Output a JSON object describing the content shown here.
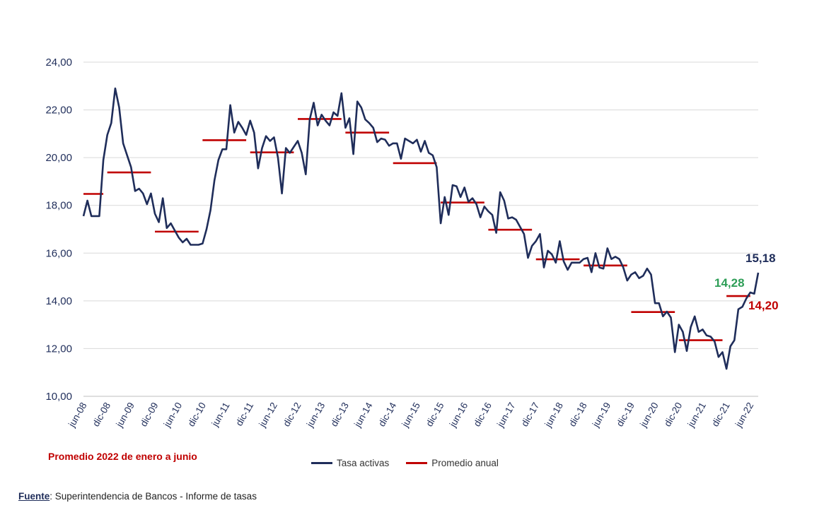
{
  "colors": {
    "series": "#1f2d5a",
    "average": "#c00000",
    "green": "#2e9e57",
    "grid": "#d9d9d9"
  },
  "chart_data": {
    "type": "line",
    "ylim": [
      10,
      24
    ],
    "yticks": [
      "10,00",
      "12,00",
      "14,00",
      "16,00",
      "18,00",
      "20,00",
      "22,00",
      "24,00"
    ],
    "ytick_values": [
      10,
      12,
      14,
      16,
      18,
      20,
      22,
      24
    ],
    "xticks": [
      "jun-08",
      "dic-08",
      "jun-09",
      "dic-09",
      "jun-10",
      "dic-10",
      "jun-11",
      "dic-11",
      "jun-12",
      "dic-12",
      "jun-13",
      "dic-13",
      "jun-14",
      "dic-14",
      "jun-15",
      "dic-15",
      "jun-16",
      "dic-16",
      "jun-17",
      "dic-17",
      "jun-18",
      "dic-18",
      "jun-19",
      "dic-19",
      "jun-20",
      "dic-20",
      "jun-21",
      "dic-21",
      "jun-22"
    ],
    "series": [
      {
        "name": "Tasa activas",
        "note": "monthly values, index 0 = jun-08, index 168 = jun-22",
        "values": [
          17.55,
          18.2,
          17.55,
          17.55,
          17.55,
          19.9,
          20.95,
          21.45,
          22.9,
          22.1,
          20.6,
          20.1,
          19.6,
          18.6,
          18.7,
          18.5,
          18.05,
          18.5,
          17.65,
          17.3,
          18.3,
          17.05,
          17.25,
          16.95,
          16.65,
          16.45,
          16.6,
          16.35,
          16.35,
          16.35,
          16.4,
          17.0,
          17.8,
          19.05,
          19.9,
          20.35,
          20.35,
          22.2,
          21.05,
          21.5,
          21.25,
          20.95,
          21.55,
          21.05,
          19.55,
          20.4,
          20.9,
          20.7,
          20.85,
          20.0,
          18.5,
          20.4,
          20.2,
          20.45,
          20.7,
          20.2,
          19.3,
          21.6,
          22.3,
          21.35,
          21.8,
          21.55,
          21.35,
          21.9,
          21.75,
          22.7,
          21.25,
          21.65,
          20.15,
          22.35,
          22.1,
          21.6,
          21.45,
          21.25,
          20.65,
          20.8,
          20.75,
          20.5,
          20.6,
          20.6,
          19.95,
          20.8,
          20.7,
          20.6,
          20.75,
          20.25,
          20.7,
          20.2,
          20.1,
          19.6,
          17.25,
          18.35,
          17.6,
          18.85,
          18.8,
          18.35,
          18.75,
          18.15,
          18.3,
          18.05,
          17.5,
          17.95,
          17.75,
          17.6,
          16.85,
          18.55,
          18.2,
          17.45,
          17.5,
          17.4,
          17.1,
          16.8,
          15.8,
          16.3,
          16.5,
          16.8,
          15.4,
          16.1,
          15.95,
          15.6,
          16.5,
          15.65,
          15.3,
          15.6,
          15.6,
          15.6,
          15.75,
          15.8,
          15.2,
          16.0,
          15.4,
          15.35,
          16.2,
          15.75,
          15.85,
          15.75,
          15.4,
          14.85,
          15.1,
          15.2,
          14.95,
          15.05,
          15.35,
          15.1,
          13.9,
          13.9,
          13.35,
          13.55,
          13.3,
          11.85,
          13.0,
          12.7,
          11.9,
          12.9,
          13.35,
          12.7,
          12.8,
          12.55,
          12.5,
          12.3,
          11.65,
          11.85,
          11.15,
          12.1,
          12.35,
          13.65,
          13.75,
          14.1,
          14.35,
          14.3,
          15.18
        ]
      },
      {
        "name": "Promedio anual",
        "segments": [
          {
            "from": 0,
            "to": 5,
            "value": 18.48
          },
          {
            "from": 6,
            "to": 17,
            "value": 19.38
          },
          {
            "from": 18,
            "to": 29,
            "value": 16.9
          },
          {
            "from": 30,
            "to": 41,
            "value": 20.73
          },
          {
            "from": 42,
            "to": 53,
            "value": 20.22
          },
          {
            "from": 54,
            "to": 65,
            "value": 21.62
          },
          {
            "from": 66,
            "to": 77,
            "value": 21.05
          },
          {
            "from": 78,
            "to": 89,
            "value": 19.77
          },
          {
            "from": 90,
            "to": 101,
            "value": 18.12
          },
          {
            "from": 102,
            "to": 113,
            "value": 16.98
          },
          {
            "from": 114,
            "to": 125,
            "value": 15.74
          },
          {
            "from": 126,
            "to": 137,
            "value": 15.48
          },
          {
            "from": 138,
            "to": 149,
            "value": 13.53
          },
          {
            "from": 150,
            "to": 161,
            "value": 12.35
          },
          {
            "from": 162,
            "to": 168,
            "value": 14.2
          }
        ]
      }
    ],
    "annotations": [
      {
        "text": "15,18",
        "color": "series"
      },
      {
        "text": "14,28",
        "color": "green"
      },
      {
        "text": "14,20",
        "color": "average"
      }
    ],
    "legend": [
      "Tasa activas",
      "Promedio anual"
    ],
    "legend_position": "bottom-center"
  },
  "note": "Promedio 2022 de enero a junio",
  "source": {
    "label": "Fuente",
    "text": ": Superintendencia de Bancos - Informe de tasas"
  }
}
